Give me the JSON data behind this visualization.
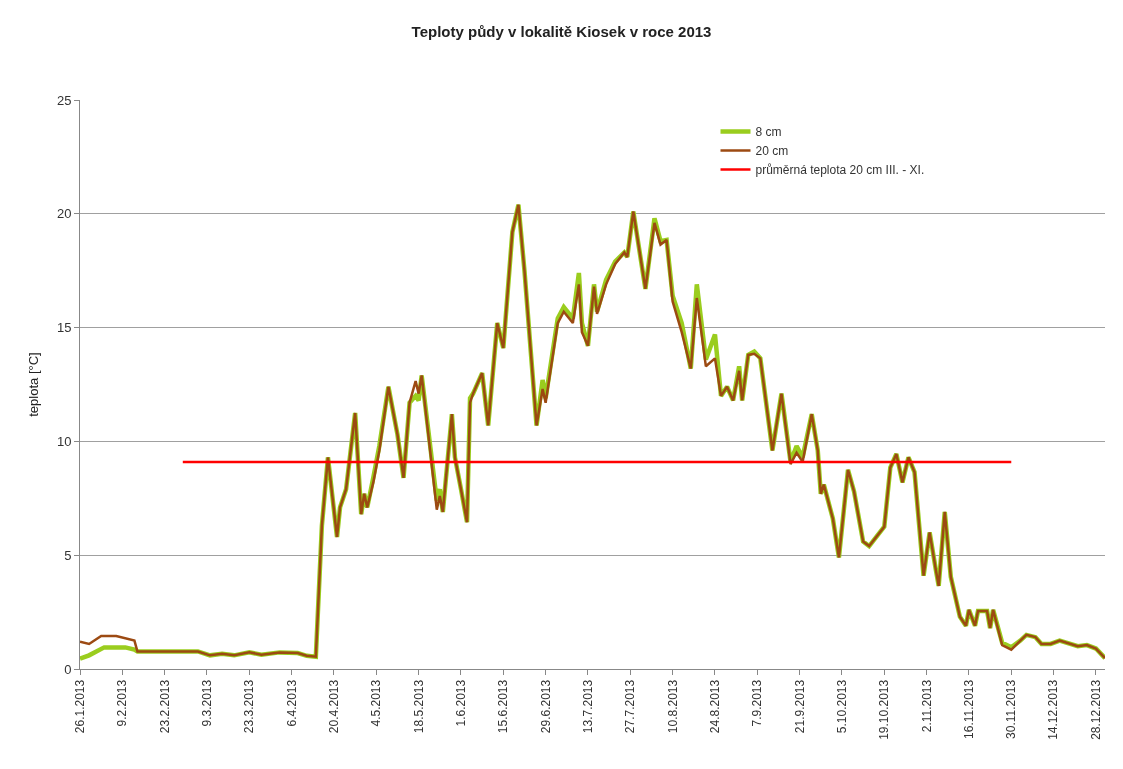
{
  "chart_data": {
    "type": "line",
    "title": "Teploty půdy v lokalitě Kiosek v roce 2013",
    "ylabel": "teplota [°C]",
    "ylim": [
      0,
      25
    ],
    "yticks": [
      0,
      5,
      10,
      15,
      20,
      25
    ],
    "xlim": [
      "2013-01-26",
      "2013-12-31"
    ],
    "xticks": [
      {
        "value": "2013-01-26",
        "label": "26.1.2013"
      },
      {
        "value": "2013-02-09",
        "label": "9.2.2013"
      },
      {
        "value": "2013-02-23",
        "label": "23.2.2013"
      },
      {
        "value": "2013-03-09",
        "label": "9.3.2013"
      },
      {
        "value": "2013-03-23",
        "label": "23.3.2013"
      },
      {
        "value": "2013-04-06",
        "label": "6.4.2013"
      },
      {
        "value": "2013-04-20",
        "label": "20.4.2013"
      },
      {
        "value": "2013-05-04",
        "label": "4.5.2013"
      },
      {
        "value": "2013-05-18",
        "label": "18.5.2013"
      },
      {
        "value": "2013-06-01",
        "label": "1.6.2013"
      },
      {
        "value": "2013-06-15",
        "label": "15.6.2013"
      },
      {
        "value": "2013-06-29",
        "label": "29.6.2013"
      },
      {
        "value": "2013-07-13",
        "label": "13.7.2013"
      },
      {
        "value": "2013-07-27",
        "label": "27.7.2013"
      },
      {
        "value": "2013-08-10",
        "label": "10.8.2013"
      },
      {
        "value": "2013-08-24",
        "label": "24.8.2013"
      },
      {
        "value": "2013-09-07",
        "label": "7.9.2013"
      },
      {
        "value": "2013-09-21",
        "label": "21.9.2013"
      },
      {
        "value": "2013-10-05",
        "label": "5.10.2013"
      },
      {
        "value": "2013-10-19",
        "label": "19.10.2013"
      },
      {
        "value": "2013-11-02",
        "label": "2.11.2013"
      },
      {
        "value": "2013-11-16",
        "label": "16.11.2013"
      },
      {
        "value": "2013-11-30",
        "label": "30.11.2013"
      },
      {
        "value": "2013-12-14",
        "label": "14.12.2013"
      },
      {
        "value": "2013-12-28",
        "label": "28.12.2013"
      }
    ],
    "grid": "y",
    "legend": "top right",
    "series": [
      {
        "name": "8 cm",
        "color": "#9acd1e",
        "x": [
          "2013-01-26",
          "2013-01-29",
          "2013-02-03",
          "2013-02-10",
          "2013-02-13",
          "2013-02-14",
          "2013-03-06",
          "2013-03-10",
          "2013-03-14",
          "2013-03-18",
          "2013-03-23",
          "2013-03-27",
          "2013-04-02",
          "2013-04-08",
          "2013-04-11",
          "2013-04-14",
          "2013-04-16",
          "2013-04-18",
          "2013-04-21",
          "2013-04-22",
          "2013-04-24",
          "2013-04-27",
          "2013-04-29",
          "2013-04-30",
          "2013-05-01",
          "2013-05-03",
          "2013-05-05",
          "2013-05-08",
          "2013-05-11",
          "2013-05-13",
          "2013-05-15",
          "2013-05-17",
          "2013-05-18",
          "2013-05-19",
          "2013-05-24",
          "2013-05-25",
          "2013-05-26",
          "2013-05-29",
          "2013-05-30",
          "2013-06-01",
          "2013-06-03",
          "2013-06-04",
          "2013-06-05",
          "2013-06-08",
          "2013-06-10",
          "2013-06-13",
          "2013-06-15",
          "2013-06-18",
          "2013-06-20",
          "2013-06-22",
          "2013-06-26",
          "2013-06-28",
          "2013-06-29",
          "2013-07-03",
          "2013-07-05",
          "2013-07-08",
          "2013-07-10",
          "2013-07-11",
          "2013-07-13",
          "2013-07-15",
          "2013-07-16",
          "2013-07-19",
          "2013-07-22",
          "2013-07-25",
          "2013-07-26",
          "2013-07-28",
          "2013-08-01",
          "2013-08-04",
          "2013-08-06",
          "2013-08-08",
          "2013-08-10",
          "2013-08-13",
          "2013-08-16",
          "2013-08-18",
          "2013-08-21",
          "2013-08-24",
          "2013-08-26",
          "2013-08-28",
          "2013-08-30",
          "2013-09-01",
          "2013-09-02",
          "2013-09-04",
          "2013-09-06",
          "2013-09-08",
          "2013-09-12",
          "2013-09-15",
          "2013-09-18",
          "2013-09-20",
          "2013-09-22",
          "2013-09-25",
          "2013-09-27",
          "2013-09-28",
          "2013-09-29",
          "2013-10-02",
          "2013-10-04",
          "2013-10-07",
          "2013-10-09",
          "2013-10-12",
          "2013-10-14",
          "2013-10-19",
          "2013-10-21",
          "2013-10-23",
          "2013-10-25",
          "2013-10-27",
          "2013-10-29",
          "2013-11-01",
          "2013-11-03",
          "2013-11-05",
          "2013-11-06",
          "2013-11-08",
          "2013-11-10",
          "2013-11-13",
          "2013-11-15",
          "2013-11-16",
          "2013-11-18",
          "2013-11-19",
          "2013-11-22",
          "2013-11-23",
          "2013-11-24",
          "2013-11-27",
          "2013-11-30",
          "2013-12-03",
          "2013-12-05",
          "2013-12-08",
          "2013-12-10",
          "2013-12-13",
          "2013-12-16",
          "2013-12-22",
          "2013-12-25",
          "2013-12-28",
          "2013-12-31"
        ],
        "values": [
          0.45,
          0.6,
          0.95,
          0.95,
          0.85,
          0.77,
          0.77,
          0.6,
          0.67,
          0.6,
          0.73,
          0.63,
          0.73,
          0.7,
          0.58,
          0.54,
          6.3,
          9.3,
          5.8,
          7.1,
          7.9,
          11.25,
          6.8,
          7.7,
          7.1,
          8.4,
          9.8,
          12.4,
          10.3,
          8.4,
          11.7,
          12.0,
          11.8,
          12.9,
          7.4,
          7.9,
          6.9,
          11.2,
          9.3,
          7.9,
          6.45,
          11.9,
          12.1,
          13.0,
          10.7,
          15.2,
          14.1,
          19.2,
          20.4,
          17.5,
          10.7,
          12.7,
          11.9,
          15.4,
          15.9,
          15.4,
          17.4,
          15.2,
          14.2,
          16.9,
          15.7,
          17.1,
          17.9,
          18.3,
          18.1,
          20.1,
          16.7,
          19.8,
          18.8,
          18.85,
          16.4,
          15.2,
          13.2,
          16.9,
          13.6,
          14.7,
          12.0,
          12.4,
          11.8,
          13.3,
          11.8,
          13.8,
          13.95,
          13.65,
          9.6,
          12.1,
          9.1,
          9.8,
          9.3,
          11.2,
          9.6,
          7.7,
          8.1,
          6.6,
          4.9,
          8.75,
          7.8,
          5.6,
          5.4,
          6.25,
          8.85,
          9.45,
          8.2,
          9.3,
          8.65,
          4.1,
          6.0,
          4.4,
          3.65,
          6.9,
          4.05,
          2.3,
          1.9,
          2.6,
          1.9,
          2.55,
          2.55,
          1.8,
          2.6,
          1.15,
          0.95,
          1.25,
          1.5,
          1.4,
          1.1,
          1.1,
          1.25,
          1.0,
          1.05,
          0.9,
          0.48
        ]
      },
      {
        "name": "20 cm",
        "color": "#9c4a12",
        "x": [
          "2013-01-26",
          "2013-01-29",
          "2013-02-02",
          "2013-02-07",
          "2013-02-13",
          "2013-02-14",
          "2013-03-06",
          "2013-03-10",
          "2013-03-14",
          "2013-03-18",
          "2013-03-23",
          "2013-03-27",
          "2013-04-02",
          "2013-04-08",
          "2013-04-11",
          "2013-04-14",
          "2013-04-16",
          "2013-04-18",
          "2013-04-21",
          "2013-04-22",
          "2013-04-24",
          "2013-04-27",
          "2013-04-29",
          "2013-04-30",
          "2013-05-01",
          "2013-05-03",
          "2013-05-05",
          "2013-05-08",
          "2013-05-11",
          "2013-05-13",
          "2013-05-15",
          "2013-05-17",
          "2013-05-18",
          "2013-05-19",
          "2013-05-24",
          "2013-05-25",
          "2013-05-26",
          "2013-05-29",
          "2013-05-30",
          "2013-06-01",
          "2013-06-03",
          "2013-06-04",
          "2013-06-05",
          "2013-06-08",
          "2013-06-10",
          "2013-06-13",
          "2013-06-15",
          "2013-06-18",
          "2013-06-20",
          "2013-06-22",
          "2013-06-26",
          "2013-06-28",
          "2013-06-29",
          "2013-07-03",
          "2013-07-05",
          "2013-07-08",
          "2013-07-10",
          "2013-07-11",
          "2013-07-13",
          "2013-07-15",
          "2013-07-16",
          "2013-07-19",
          "2013-07-22",
          "2013-07-25",
          "2013-07-26",
          "2013-07-28",
          "2013-08-01",
          "2013-08-04",
          "2013-08-06",
          "2013-08-08",
          "2013-08-10",
          "2013-08-13",
          "2013-08-16",
          "2013-08-18",
          "2013-08-21",
          "2013-08-24",
          "2013-08-26",
          "2013-08-28",
          "2013-08-30",
          "2013-09-01",
          "2013-09-02",
          "2013-09-04",
          "2013-09-06",
          "2013-09-08",
          "2013-09-12",
          "2013-09-15",
          "2013-09-18",
          "2013-09-20",
          "2013-09-22",
          "2013-09-25",
          "2013-09-27",
          "2013-09-28",
          "2013-09-29",
          "2013-10-02",
          "2013-10-04",
          "2013-10-07",
          "2013-10-09",
          "2013-10-12",
          "2013-10-14",
          "2013-10-19",
          "2013-10-21",
          "2013-10-23",
          "2013-10-25",
          "2013-10-27",
          "2013-10-29",
          "2013-11-01",
          "2013-11-03",
          "2013-11-05",
          "2013-11-06",
          "2013-11-08",
          "2013-11-10",
          "2013-11-13",
          "2013-11-15",
          "2013-11-16",
          "2013-11-18",
          "2013-11-19",
          "2013-11-22",
          "2013-11-23",
          "2013-11-24",
          "2013-11-27",
          "2013-11-30",
          "2013-12-03",
          "2013-12-05",
          "2013-12-08",
          "2013-12-10",
          "2013-12-13",
          "2013-12-16",
          "2013-12-22",
          "2013-12-25",
          "2013-12-28",
          "2013-12-31"
        ],
        "values": [
          1.2,
          1.1,
          1.45,
          1.45,
          1.25,
          0.77,
          0.77,
          0.6,
          0.67,
          0.6,
          0.73,
          0.63,
          0.73,
          0.7,
          0.58,
          0.54,
          6.3,
          9.3,
          5.8,
          7.1,
          7.9,
          11.25,
          6.8,
          7.7,
          7.1,
          8.2,
          9.6,
          12.4,
          10.3,
          8.4,
          11.7,
          12.65,
          12.1,
          12.9,
          7.0,
          7.6,
          6.9,
          11.2,
          9.3,
          7.9,
          6.45,
          11.7,
          12.1,
          13.0,
          10.7,
          15.2,
          14.1,
          19.2,
          20.4,
          17.5,
          10.7,
          12.3,
          11.7,
          15.2,
          15.7,
          15.2,
          16.9,
          14.8,
          14.2,
          16.8,
          15.6,
          16.9,
          17.8,
          18.3,
          18.1,
          20.1,
          16.7,
          19.6,
          18.65,
          18.85,
          16.15,
          14.8,
          13.2,
          16.3,
          13.3,
          13.65,
          12.0,
          12.4,
          11.8,
          13.1,
          11.8,
          13.8,
          13.85,
          13.65,
          9.6,
          12.1,
          9.0,
          9.5,
          9.1,
          11.2,
          9.6,
          7.7,
          8.1,
          6.6,
          4.9,
          8.75,
          7.8,
          5.6,
          5.4,
          6.25,
          8.85,
          9.45,
          8.2,
          9.3,
          8.65,
          4.1,
          6.0,
          4.4,
          3.65,
          6.9,
          4.05,
          2.3,
          1.9,
          2.6,
          1.9,
          2.55,
          2.55,
          1.8,
          2.6,
          1.05,
          0.85,
          1.25,
          1.5,
          1.4,
          1.1,
          1.1,
          1.25,
          1.0,
          1.05,
          0.9,
          0.48
        ]
      },
      {
        "name": "průměrná teplota 20 cm III. - XI.",
        "color": "#ff0000",
        "x": [
          "2013-03-01",
          "2013-11-30"
        ],
        "values": [
          9.1,
          9.1
        ]
      }
    ]
  }
}
